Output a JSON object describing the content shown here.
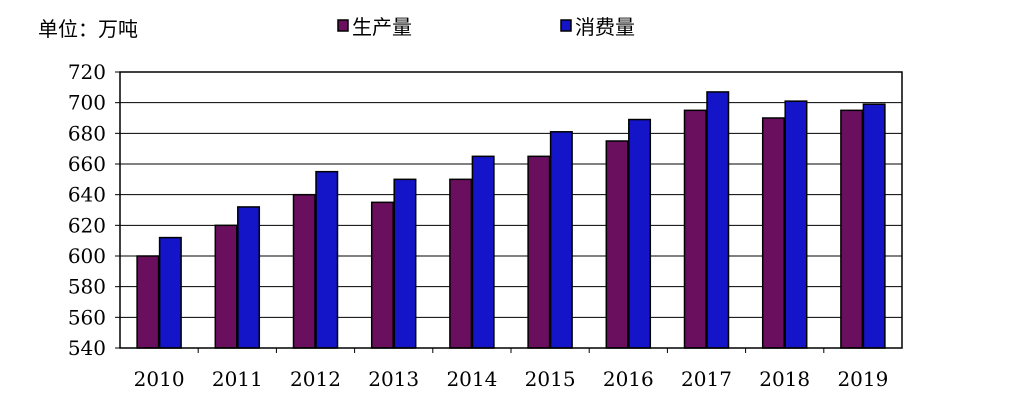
{
  "chart_data": {
    "type": "bar",
    "unit_label": "单位：万吨",
    "categories": [
      "2010",
      "2011",
      "2012",
      "2013",
      "2014",
      "2015",
      "2016",
      "2017",
      "2018",
      "2019"
    ],
    "series": [
      {
        "name": "生产量",
        "color": "#6a0f5e",
        "values": [
          600,
          620,
          640,
          635,
          650,
          665,
          675,
          695,
          690,
          695
        ]
      },
      {
        "name": "消费量",
        "color": "#1414c8",
        "values": [
          612,
          632,
          655,
          650,
          665,
          681,
          689,
          707,
          701,
          699
        ]
      }
    ],
    "ylim": [
      540,
      720
    ],
    "yticks": [
      "720",
      "700",
      "680",
      "660",
      "640",
      "620",
      "600",
      "580",
      "560",
      "540"
    ],
    "grid": true,
    "legend": "top-center"
  }
}
